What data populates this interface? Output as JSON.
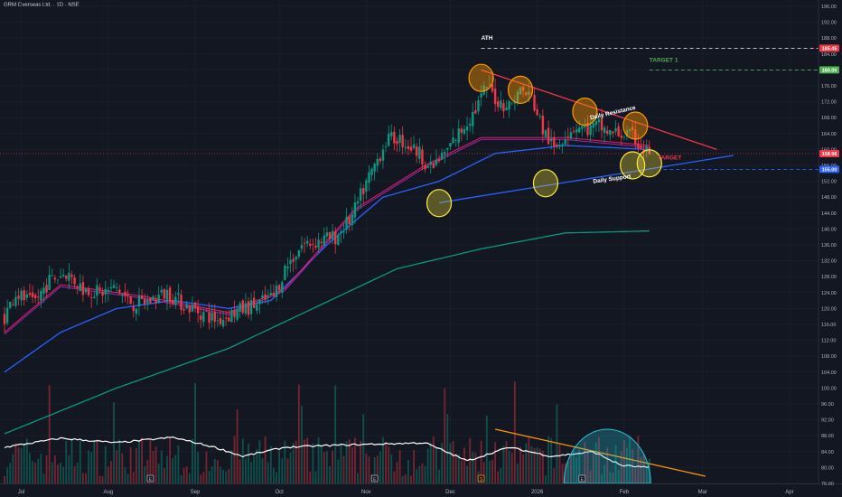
{
  "header": {
    "title": "GRM Overseas Ltd. · 1D · NSE"
  },
  "theme": {
    "background": "#131722",
    "grid": "#1e222d",
    "axis_text": "#b2b5be",
    "up_color": "#089981",
    "down_color": "#f23645",
    "ema_fast": "#e91e63",
    "ema_mid": "#9c27b0",
    "ema_slow": "#2962ff",
    "ema_long": "#089981",
    "rsi_line": "#ffffff"
  },
  "chart_data": {
    "type": "candlestick",
    "symbol": "GRM Overseas Ltd.",
    "interval": "1D",
    "exchange": "NSE",
    "ylim": [
      76,
      196
    ],
    "y_ticks": [
      76,
      80,
      84,
      88,
      92,
      96,
      100,
      104,
      108,
      112,
      116,
      120,
      124,
      128,
      132,
      136,
      140,
      144,
      148,
      152,
      156,
      160,
      164,
      168,
      172,
      176,
      180,
      184,
      188,
      192,
      196
    ],
    "x_ticks": [
      "Jul",
      "Aug",
      "Sep",
      "Oct",
      "Nov",
      "Dec",
      "2026",
      "Feb",
      "Mar",
      "Apr"
    ],
    "x_tick_days": [
      6,
      37,
      68,
      98,
      129,
      159,
      190,
      221,
      249,
      280
    ],
    "timeline_days": [
      0,
      290
    ],
    "last_price": 158.96,
    "price_labels": [
      {
        "text": "185.45",
        "value": 185.45,
        "color": "#f23645"
      },
      {
        "text": "180.00",
        "value": 180.0,
        "color": "#4caf50"
      },
      {
        "text": "158.96",
        "value": 158.96,
        "color": "#f23645"
      },
      {
        "text": "155.00",
        "value": 155.0,
        "color": "#2962ff"
      }
    ],
    "horizontal_lines": [
      {
        "value": 185.45,
        "color": "#d1d4dc",
        "start_day": 170
      },
      {
        "value": 180.0,
        "color": "#4caf50",
        "start_day": 230
      },
      {
        "value": 155.0,
        "color": "#2962ff",
        "start_day": 235
      }
    ],
    "trendlines": [
      {
        "name": "Daily Resistance",
        "color": "#f23645",
        "points": [
          [
            170,
            180.0
          ],
          [
            254,
            160.0
          ]
        ]
      },
      {
        "name": "Daily Support",
        "color": "#2962ff",
        "points": [
          [
            155,
            146.6
          ],
          [
            260,
            158.5
          ]
        ]
      },
      {
        "name": "indicator-trend",
        "color": "#ff9800",
        "panel": "indicator",
        "points": [
          [
            175,
            88.0
          ],
          [
            250,
            77.6
          ]
        ]
      }
    ],
    "annotations": [
      {
        "text": "ATH",
        "day": 170,
        "value": 187.6,
        "color": "#ffffff"
      },
      {
        "text": "TARGET 1",
        "day": 230,
        "value": 182.0,
        "color": "#4caf50"
      },
      {
        "text": "Daily Resistance",
        "day": 209,
        "value": 167.5,
        "color": "#ffffff",
        "angle": -13
      },
      {
        "text": "Daily Support",
        "day": 210,
        "value": 151.5,
        "color": "#ffffff",
        "angle": -8
      },
      {
        "text": "TARGET",
        "day": 233,
        "value": 157.5,
        "color": "#f23645"
      }
    ],
    "circles": [
      {
        "day": 170,
        "value": 178.0,
        "color": "orange"
      },
      {
        "day": 184,
        "value": 175.0,
        "color": "orange"
      },
      {
        "day": 207,
        "value": 169.5,
        "color": "orange"
      },
      {
        "day": 225,
        "value": 166.0,
        "color": "orange"
      },
      {
        "day": 155,
        "value": 146.5,
        "color": "yellow"
      },
      {
        "day": 193,
        "value": 151.5,
        "color": "yellow"
      },
      {
        "day": 224,
        "value": 156.0,
        "color": "yellow"
      },
      {
        "day": 230,
        "value": 156.5,
        "color": "yellow"
      }
    ],
    "event_markers": [
      {
        "day": 52,
        "label": "E"
      },
      {
        "day": 132,
        "label": "E"
      },
      {
        "day": 170,
        "label": "S"
      },
      {
        "day": 206,
        "label": "E"
      }
    ],
    "price_anchors": [
      [
        0,
        118
      ],
      [
        4,
        124
      ],
      [
        10,
        121
      ],
      [
        16,
        127
      ],
      [
        22,
        129
      ],
      [
        28,
        125
      ],
      [
        34,
        124
      ],
      [
        40,
        125
      ],
      [
        46,
        121
      ],
      [
        52,
        122
      ],
      [
        58,
        124
      ],
      [
        64,
        121
      ],
      [
        70,
        119
      ],
      [
        76,
        117
      ],
      [
        82,
        119
      ],
      [
        90,
        121
      ],
      [
        96,
        123
      ],
      [
        100,
        130
      ],
      [
        106,
        136
      ],
      [
        112,
        137
      ],
      [
        118,
        138
      ],
      [
        124,
        143
      ],
      [
        128,
        150
      ],
      [
        132,
        156
      ],
      [
        136,
        162
      ],
      [
        140,
        163
      ],
      [
        144,
        161
      ],
      [
        148,
        159
      ],
      [
        152,
        155
      ],
      [
        156,
        158
      ],
      [
        160,
        162
      ],
      [
        164,
        166
      ],
      [
        168,
        170
      ],
      [
        172,
        176
      ],
      [
        176,
        172
      ],
      [
        180,
        171
      ],
      [
        184,
        175
      ],
      [
        188,
        173
      ],
      [
        192,
        165
      ],
      [
        196,
        160
      ],
      [
        200,
        164
      ],
      [
        204,
        166
      ],
      [
        208,
        165
      ],
      [
        212,
        166
      ],
      [
        216,
        164
      ],
      [
        220,
        164
      ],
      [
        224,
        163
      ],
      [
        228,
        160
      ],
      [
        230,
        158.96
      ]
    ],
    "ema_anchors": {
      "fast": [
        [
          0,
          114
        ],
        [
          20,
          126
        ],
        [
          50,
          123
        ],
        [
          80,
          119
        ],
        [
          100,
          125
        ],
        [
          125,
          145
        ],
        [
          150,
          156
        ],
        [
          170,
          163
        ],
        [
          200,
          163
        ],
        [
          230,
          161
        ]
      ],
      "slow": [
        [
          0,
          104
        ],
        [
          20,
          114
        ],
        [
          40,
          120
        ],
        [
          60,
          122
        ],
        [
          80,
          120
        ],
        [
          95,
          122
        ],
        [
          115,
          136
        ],
        [
          135,
          148
        ],
        [
          155,
          152
        ],
        [
          175,
          159
        ],
        [
          200,
          161
        ],
        [
          230,
          160
        ]
      ],
      "long": [
        [
          0,
          88.5
        ],
        [
          40,
          100
        ],
        [
          80,
          110
        ],
        [
          110,
          120
        ],
        [
          140,
          130
        ],
        [
          170,
          135
        ],
        [
          200,
          139
        ],
        [
          230,
          139.5
        ]
      ]
    },
    "indicator_panel": {
      "ylim": [
        76,
        92
      ],
      "line_anchors": [
        [
          0,
          84
        ],
        [
          20,
          86
        ],
        [
          40,
          85
        ],
        [
          60,
          86.2
        ],
        [
          75,
          84
        ],
        [
          85,
          82
        ],
        [
          100,
          84
        ],
        [
          120,
          84.5
        ],
        [
          150,
          85
        ],
        [
          165,
          81
        ],
        [
          180,
          84
        ],
        [
          195,
          82
        ],
        [
          210,
          83
        ],
        [
          220,
          80
        ],
        [
          230,
          79.5
        ]
      ]
    }
  }
}
